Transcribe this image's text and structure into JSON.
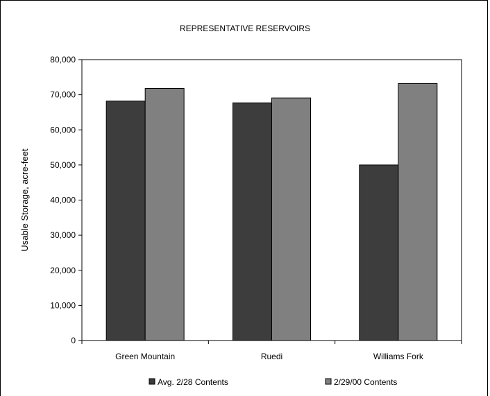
{
  "chart_data": {
    "type": "bar",
    "title": "REPRESENTATIVE RESERVOIRS",
    "xlabel": "",
    "ylabel": "Usable Storage, acre-feet",
    "categories": [
      "Green Mountain",
      "Ruedi",
      "Williams Fork"
    ],
    "series": [
      {
        "name": "Avg. 2/28 Contents",
        "values": [
          68200,
          67700,
          50000
        ],
        "color": "#3d3d3d"
      },
      {
        "name": "2/29/00 Contents",
        "values": [
          71800,
          69100,
          73200
        ],
        "color": "#808080"
      }
    ],
    "ylim": [
      0,
      80000
    ],
    "yticks": [
      0,
      10000,
      20000,
      30000,
      40000,
      50000,
      60000,
      70000,
      80000
    ],
    "ytick_labels": [
      "0",
      "10,000",
      "20,000",
      "30,000",
      "40,000",
      "50,000",
      "60,000",
      "70,000",
      "80,000"
    ],
    "grid": false,
    "legend_position": "bottom"
  }
}
